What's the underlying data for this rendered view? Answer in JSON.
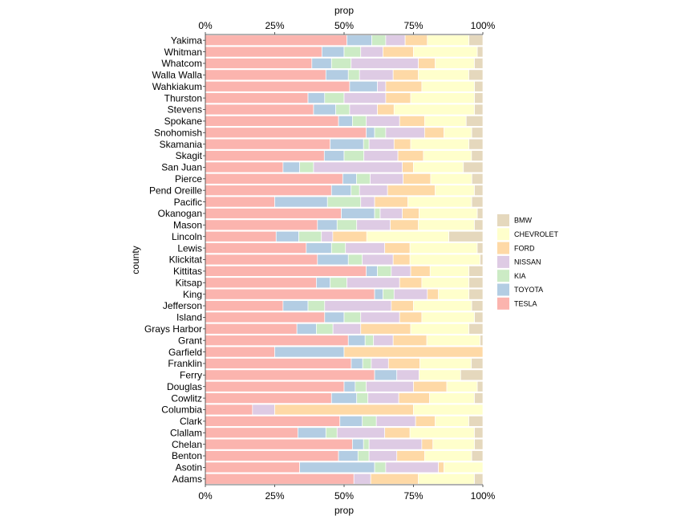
{
  "chart_data": {
    "type": "bar",
    "orientation": "horizontal",
    "stacked": "percent",
    "xlabel": "prop",
    "ylabel": "county",
    "xlim": [
      0,
      1
    ],
    "x_ticks": [
      "0%",
      "25%",
      "50%",
      "75%",
      "100%"
    ],
    "grid": false,
    "legend_position": "right",
    "categories": [
      "Yakima",
      "Whitman",
      "Whatcom",
      "Walla Walla",
      "Wahkiakum",
      "Thurston",
      "Stevens",
      "Spokane",
      "Snohomish",
      "Skamania",
      "Skagit",
      "San Juan",
      "Pierce",
      "Pend Oreille",
      "Pacific",
      "Okanogan",
      "Mason",
      "Lincoln",
      "Lewis",
      "Klickitat",
      "Kittitas",
      "Kitsap",
      "King",
      "Jefferson",
      "Island",
      "Grays Harbor",
      "Grant",
      "Garfield",
      "Franklin",
      "Ferry",
      "Douglas",
      "Cowlitz",
      "Columbia",
      "Clark",
      "Clallam",
      "Chelan",
      "Benton",
      "Asotin",
      "Adams"
    ],
    "series": [
      {
        "name": "TESLA",
        "color": "#fbb4ae",
        "values": [
          0.51,
          0.42,
          0.38,
          0.43,
          0.52,
          0.37,
          0.39,
          0.48,
          0.58,
          0.45,
          0.42,
          0.28,
          0.5,
          0.45,
          0.25,
          0.49,
          0.4,
          0.25,
          0.36,
          0.4,
          0.58,
          0.4,
          0.61,
          0.28,
          0.43,
          0.33,
          0.51,
          0.25,
          0.51,
          0.61,
          0.5,
          0.45,
          0.17,
          0.48,
          0.33,
          0.53,
          0.48,
          0.34,
          0.53
        ]
      },
      {
        "name": "TOYOTA",
        "color": "#b3cde3",
        "values": [
          0.09,
          0.08,
          0.07,
          0.08,
          0.1,
          0.06,
          0.08,
          0.05,
          0.03,
          0.12,
          0.07,
          0.06,
          0.05,
          0.07,
          0.19,
          0.12,
          0.07,
          0.08,
          0.09,
          0.11,
          0.04,
          0.05,
          0.03,
          0.09,
          0.07,
          0.07,
          0.06,
          0.25,
          0.04,
          0.08,
          0.04,
          0.09,
          0.0,
          0.08,
          0.1,
          0.04,
          0.07,
          0.27,
          0.0
        ]
      },
      {
        "name": "KIA",
        "color": "#ccebc5",
        "values": [
          0.05,
          0.06,
          0.07,
          0.04,
          0.0,
          0.07,
          0.05,
          0.05,
          0.04,
          0.02,
          0.07,
          0.05,
          0.05,
          0.03,
          0.12,
          0.02,
          0.07,
          0.08,
          0.05,
          0.05,
          0.05,
          0.06,
          0.04,
          0.06,
          0.06,
          0.06,
          0.03,
          0.0,
          0.03,
          0.0,
          0.04,
          0.04,
          0.0,
          0.05,
          0.04,
          0.02,
          0.04,
          0.04,
          0.0
        ]
      },
      {
        "name": "NISSAN",
        "color": "#decbe4",
        "values": [
          0.07,
          0.08,
          0.24,
          0.12,
          0.03,
          0.15,
          0.1,
          0.12,
          0.14,
          0.09,
          0.12,
          0.32,
          0.12,
          0.1,
          0.05,
          0.08,
          0.12,
          0.04,
          0.14,
          0.11,
          0.07,
          0.19,
          0.12,
          0.24,
          0.14,
          0.1,
          0.07,
          0.0,
          0.06,
          0.08,
          0.17,
          0.11,
          0.08,
          0.14,
          0.17,
          0.19,
          0.1,
          0.19,
          0.06
        ]
      },
      {
        "name": "FORD",
        "color": "#fed9a6",
        "values": [
          0.08,
          0.11,
          0.06,
          0.09,
          0.13,
          0.09,
          0.06,
          0.09,
          0.07,
          0.06,
          0.09,
          0.04,
          0.1,
          0.17,
          0.12,
          0.06,
          0.1,
          0.12,
          0.09,
          0.06,
          0.07,
          0.08,
          0.04,
          0.08,
          0.08,
          0.18,
          0.12,
          0.5,
          0.11,
          0.0,
          0.12,
          0.11,
          0.5,
          0.07,
          0.09,
          0.04,
          0.1,
          0.02,
          0.17
        ]
      },
      {
        "name": "CHEVROLET",
        "color": "#ffffcc",
        "values": [
          0.15,
          0.23,
          0.14,
          0.18,
          0.19,
          0.23,
          0.29,
          0.15,
          0.1,
          0.21,
          0.17,
          0.18,
          0.15,
          0.14,
          0.23,
          0.21,
          0.2,
          0.29,
          0.24,
          0.25,
          0.14,
          0.17,
          0.11,
          0.21,
          0.19,
          0.21,
          0.19,
          0.0,
          0.18,
          0.15,
          0.11,
          0.16,
          0.25,
          0.12,
          0.23,
          0.15,
          0.17,
          0.14,
          0.2
        ]
      },
      {
        "name": "BMW",
        "color": "#e5d8bd",
        "values": [
          0.05,
          0.02,
          0.03,
          0.05,
          0.03,
          0.03,
          0.03,
          0.06,
          0.04,
          0.05,
          0.04,
          0.07,
          0.04,
          0.03,
          0.04,
          0.02,
          0.03,
          0.12,
          0.02,
          0.01,
          0.05,
          0.05,
          0.05,
          0.04,
          0.03,
          0.05,
          0.01,
          0.0,
          0.04,
          0.08,
          0.02,
          0.03,
          0.0,
          0.05,
          0.03,
          0.03,
          0.04,
          0.0,
          0.03
        ]
      }
    ]
  }
}
